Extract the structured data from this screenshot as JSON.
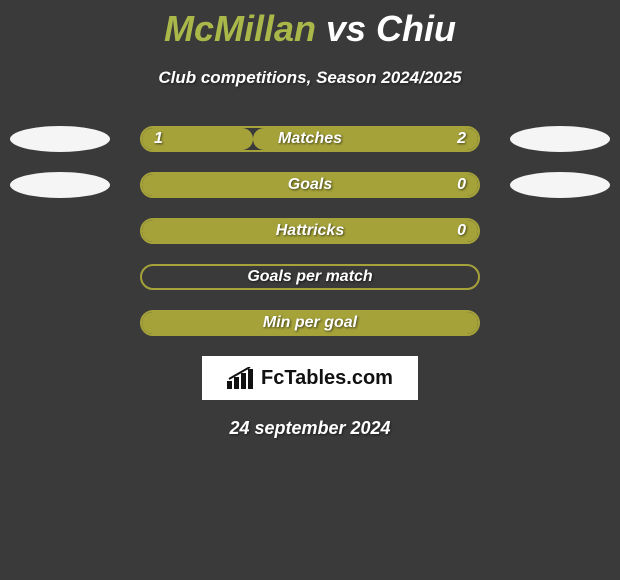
{
  "title": {
    "player1": "McMillan",
    "vs": "vs",
    "player2": "Chiu",
    "player1_color": "#aab84a",
    "player2_color": "#ffffff",
    "vs_color": "#ffffff"
  },
  "subtitle": "Club competitions, Season 2024/2025",
  "background_color": "#3a3a3a",
  "bar_fill_color": "#a5a23a",
  "bar_border_color": "#a5a23a",
  "ellipse_color": "#f5f5f5",
  "rows": [
    {
      "label": "Matches",
      "left_value": "1",
      "right_value": "2",
      "left_ratio": 0.33,
      "right_ratio": 0.67,
      "show_left_ellipse": true,
      "show_right_ellipse": true,
      "fill_mode": "split"
    },
    {
      "label": "Goals",
      "left_value": "",
      "right_value": "0",
      "left_ratio": 0,
      "right_ratio": 0,
      "show_left_ellipse": true,
      "show_right_ellipse": true,
      "fill_mode": "full"
    },
    {
      "label": "Hattricks",
      "left_value": "",
      "right_value": "0",
      "left_ratio": 0,
      "right_ratio": 0,
      "show_left_ellipse": false,
      "show_right_ellipse": false,
      "fill_mode": "full"
    },
    {
      "label": "Goals per match",
      "left_value": "",
      "right_value": "",
      "left_ratio": 0,
      "right_ratio": 0,
      "show_left_ellipse": false,
      "show_right_ellipse": false,
      "fill_mode": "empty"
    },
    {
      "label": "Min per goal",
      "left_value": "",
      "right_value": "",
      "left_ratio": 0,
      "right_ratio": 0,
      "show_left_ellipse": false,
      "show_right_ellipse": false,
      "fill_mode": "full"
    }
  ],
  "logo": {
    "icon": "bars-icon",
    "text_bold": "Fc",
    "text_rest": "Tables.com"
  },
  "date": "24 september 2024"
}
